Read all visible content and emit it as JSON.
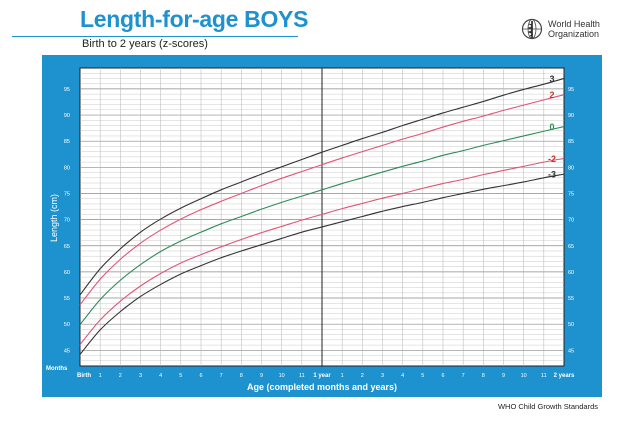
{
  "header": {
    "title": "Length-for-age BOYS",
    "subtitle": "Birth to 2 years (z-scores)",
    "org_line1": "World Health",
    "org_line2": "Organization",
    "logo_icon": "who-emblem-icon"
  },
  "footer": {
    "text": "WHO Child Growth Standards"
  },
  "colors": {
    "brand_blue": "#1d92cf",
    "plot_bg": "#ffffff",
    "grid_minor": "#b4b4b4",
    "grid_major": "#222222",
    "z_black": "#333333",
    "z_red": "#c0392b",
    "z_pink": "#e05577",
    "z_green": "#2e8b57"
  },
  "chart_data": {
    "type": "line",
    "title": "Length-for-age BOYS",
    "subtitle": "Birth to 2 years (z-scores)",
    "xlabel": "Age (completed months and years)",
    "ylabel": "Length (cm)",
    "xlim": [
      0,
      24
    ],
    "ylim": [
      42,
      99
    ],
    "grid": true,
    "months_label": "Months",
    "x_tick_labels": [
      "Birth",
      "1",
      "2",
      "3",
      "4",
      "5",
      "6",
      "7",
      "8",
      "9",
      "10",
      "11",
      "1 year",
      "1",
      "2",
      "3",
      "4",
      "5",
      "6",
      "7",
      "8",
      "9",
      "10",
      "11",
      "2 years"
    ],
    "y_ticks": [
      45,
      50,
      55,
      60,
      65,
      70,
      75,
      80,
      85,
      90,
      95
    ],
    "x": [
      0,
      1,
      2,
      3,
      4,
      5,
      6,
      7,
      8,
      9,
      10,
      11,
      12,
      13,
      14,
      15,
      16,
      17,
      18,
      19,
      20,
      21,
      22,
      23,
      24
    ],
    "series": [
      {
        "name": "3",
        "color_key": "z_black",
        "values": [
          55.6,
          60.6,
          64.4,
          67.6,
          70.1,
          72.2,
          74.0,
          75.7,
          77.2,
          78.7,
          80.1,
          81.5,
          82.9,
          84.2,
          85.5,
          86.7,
          88.0,
          89.2,
          90.4,
          91.5,
          92.6,
          93.8,
          94.9,
          95.9,
          97.0
        ]
      },
      {
        "name": "2",
        "color_key": "z_red",
        "values": [
          53.7,
          58.6,
          62.4,
          65.5,
          68.0,
          70.1,
          71.9,
          73.5,
          75.0,
          76.5,
          77.9,
          79.2,
          80.5,
          81.8,
          83.0,
          84.2,
          85.4,
          86.5,
          87.7,
          88.8,
          89.8,
          90.9,
          91.9,
          92.9,
          93.9
        ]
      },
      {
        "name": "0",
        "color_key": "z_green",
        "values": [
          49.9,
          54.7,
          58.4,
          61.4,
          63.9,
          65.9,
          67.6,
          69.2,
          70.6,
          72.0,
          73.3,
          74.5,
          75.7,
          76.9,
          78.0,
          79.1,
          80.2,
          81.2,
          82.3,
          83.2,
          84.2,
          85.1,
          86.0,
          86.9,
          87.8
        ]
      },
      {
        "name": "-2",
        "color_key": "z_red",
        "values": [
          46.1,
          50.8,
          54.4,
          57.3,
          59.7,
          61.7,
          63.3,
          64.8,
          66.2,
          67.5,
          68.7,
          69.9,
          71.0,
          72.1,
          73.1,
          74.1,
          75.0,
          76.0,
          76.9,
          77.7,
          78.6,
          79.4,
          80.2,
          81.0,
          81.7
        ]
      },
      {
        "name": "-3",
        "color_key": "z_black",
        "values": [
          44.2,
          48.9,
          52.4,
          55.3,
          57.6,
          59.6,
          61.2,
          62.7,
          64.0,
          65.2,
          66.4,
          67.6,
          68.6,
          69.6,
          70.6,
          71.6,
          72.5,
          73.3,
          74.2,
          75.0,
          75.8,
          76.5,
          77.2,
          78.0,
          78.7
        ]
      }
    ]
  }
}
